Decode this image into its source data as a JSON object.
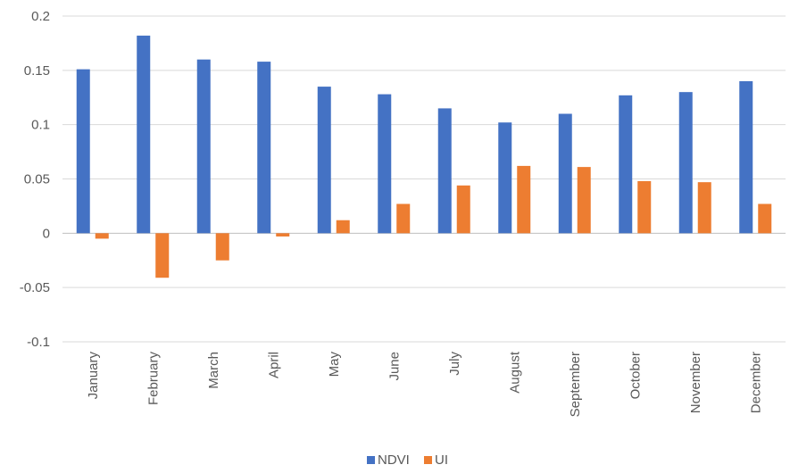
{
  "chart_data": {
    "type": "bar",
    "categories": [
      "January",
      "February",
      "March",
      "April",
      "May",
      "June",
      "July",
      "August",
      "September",
      "October",
      "November",
      "December"
    ],
    "series": [
      {
        "name": "NDVI",
        "color": "#4472C4",
        "values": [
          0.151,
          0.182,
          0.16,
          0.158,
          0.135,
          0.128,
          0.115,
          0.102,
          0.11,
          0.127,
          0.13,
          0.14
        ]
      },
      {
        "name": "UI",
        "color": "#ED7D31",
        "values": [
          -0.005,
          -0.041,
          -0.025,
          -0.003,
          0.012,
          0.027,
          0.044,
          0.062,
          0.061,
          0.048,
          0.047,
          0.027
        ]
      }
    ],
    "ylim": [
      -0.1,
      0.2
    ],
    "yticks": [
      "-0.1",
      "-0.05",
      "0",
      "0.05",
      "0.1",
      "0.15",
      "0.2"
    ],
    "grid": true,
    "legend": "bottom",
    "gridColor": "#D9D9D9",
    "axisColor": "#BFBFBF"
  }
}
